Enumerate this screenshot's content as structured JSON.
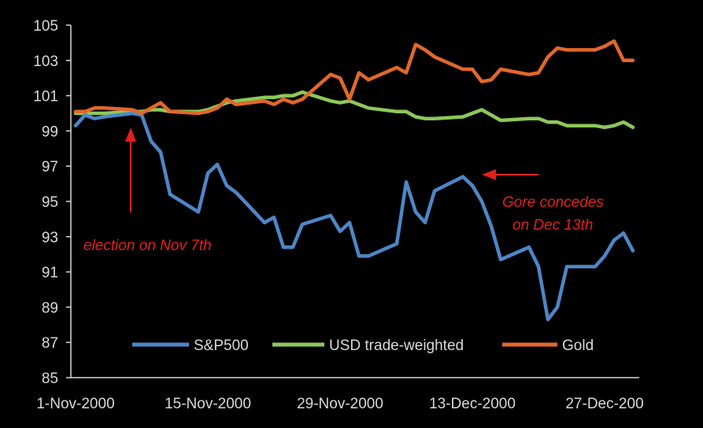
{
  "chart_data": {
    "type": "line",
    "title": "",
    "xlabel": "",
    "ylabel": "",
    "ylim": [
      85,
      105
    ],
    "yticks": [
      85,
      87,
      89,
      91,
      93,
      95,
      97,
      99,
      101,
      103,
      105
    ],
    "x_tick_labels": [
      "1-Nov-2000",
      "15-Nov-2000",
      "29-Nov-2000",
      "13-Dec-2000",
      "27-Dec-200"
    ],
    "x_tick_positions": [
      0,
      14,
      28,
      42,
      56
    ],
    "grid": false,
    "legend_position": "bottom",
    "colors": {
      "background": "#000000",
      "axis": "#d9d9d9",
      "annotation": "#e0201b"
    },
    "series": [
      {
        "name": "S&P500",
        "color": "#4e86c7",
        "x": [
          0,
          1,
          2,
          3,
          6,
          7,
          8,
          9,
          10,
          13,
          14,
          15,
          16,
          17,
          20,
          21,
          22,
          23,
          24,
          27,
          28,
          29,
          30,
          31,
          34,
          35,
          36,
          37,
          38,
          41,
          42,
          43,
          44,
          45,
          48,
          49,
          50,
          51,
          52,
          55,
          56,
          57,
          58,
          59
        ],
        "values": [
          99.3,
          99.9,
          99.7,
          99.8,
          100.0,
          99.9,
          98.4,
          97.8,
          95.4,
          94.4,
          96.6,
          97.1,
          95.9,
          95.5,
          93.8,
          94.1,
          92.4,
          92.4,
          93.7,
          94.2,
          93.3,
          93.8,
          91.9,
          91.9,
          92.6,
          96.1,
          94.4,
          93.8,
          95.6,
          96.4,
          95.9,
          95.0,
          93.6,
          91.7,
          92.4,
          91.3,
          88.3,
          89.0,
          91.3,
          91.3,
          91.9,
          92.8,
          93.2,
          92.2
        ]
      },
      {
        "name": "USD trade-weighted",
        "color": "#8dc85a",
        "x": [
          0,
          1,
          2,
          3,
          6,
          7,
          8,
          9,
          10,
          13,
          14,
          15,
          16,
          17,
          20,
          21,
          22,
          23,
          24,
          27,
          28,
          29,
          30,
          31,
          34,
          35,
          36,
          37,
          38,
          41,
          42,
          43,
          44,
          45,
          48,
          49,
          50,
          51,
          52,
          55,
          56,
          57,
          58,
          59
        ],
        "values": [
          100.0,
          100.0,
          100.0,
          100.0,
          100.1,
          100.1,
          100.2,
          100.2,
          100.1,
          100.1,
          100.2,
          100.4,
          100.6,
          100.7,
          100.9,
          100.9,
          101.0,
          101.0,
          101.2,
          100.7,
          100.6,
          100.7,
          100.5,
          100.3,
          100.1,
          100.1,
          99.8,
          99.7,
          99.7,
          99.8,
          100.0,
          100.2,
          99.9,
          99.6,
          99.7,
          99.7,
          99.5,
          99.5,
          99.3,
          99.3,
          99.2,
          99.3,
          99.5,
          99.2
        ]
      },
      {
        "name": "Gold",
        "color": "#e2682a",
        "x": [
          0,
          1,
          2,
          3,
          6,
          7,
          8,
          9,
          10,
          13,
          14,
          15,
          16,
          17,
          20,
          21,
          22,
          23,
          24,
          27,
          28,
          29,
          30,
          31,
          34,
          35,
          36,
          37,
          38,
          41,
          42,
          43,
          44,
          45,
          48,
          49,
          50,
          51,
          52,
          55,
          56,
          57,
          58,
          59
        ],
        "values": [
          100.1,
          100.1,
          100.3,
          100.3,
          100.2,
          100.0,
          100.3,
          100.6,
          100.1,
          100.0,
          100.1,
          100.3,
          100.8,
          100.5,
          100.7,
          100.5,
          100.8,
          100.6,
          100.8,
          102.2,
          102.0,
          100.8,
          102.3,
          101.9,
          102.6,
          102.3,
          103.9,
          103.6,
          103.2,
          102.5,
          102.5,
          101.8,
          101.9,
          102.5,
          102.2,
          102.3,
          103.2,
          103.7,
          103.6,
          103.6,
          103.8,
          104.1,
          103.0,
          103.0
        ]
      }
    ],
    "annotations": [
      {
        "text": "election on Nov 7th",
        "arrow": "up",
        "at_x": 6
      },
      {
        "text_line1": "Gore concedes",
        "text_line2": "on Dec 13th",
        "arrow": "left",
        "at_x": 42
      }
    ]
  }
}
